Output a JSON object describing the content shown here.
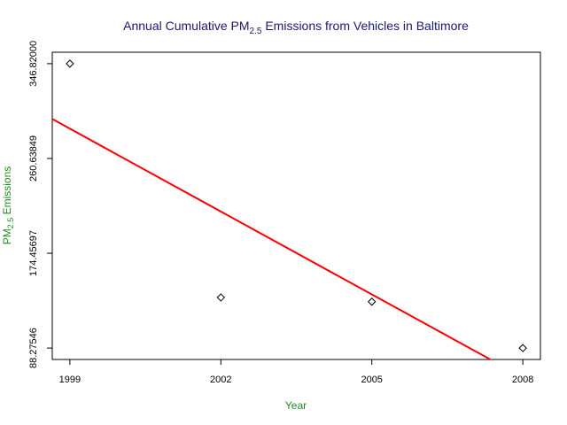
{
  "chart_data": {
    "type": "scatter",
    "title": {
      "prefix": "Annual Cumulative PM",
      "subscript": "2.5",
      "suffix": " Emissions from Vehicles in Baltimore"
    },
    "xlabel": "Year",
    "ylabel": {
      "prefix": "PM",
      "subscript": "2.5",
      "suffix": " Emissions"
    },
    "x": [
      1999,
      2002,
      2005,
      2008
    ],
    "y": [
      346.82,
      134.31,
      130.43,
      88.28
    ],
    "xlim": [
      1998.65,
      2008.35
    ],
    "ylim": [
      77.9,
      357.2
    ],
    "xticks": [
      1999,
      2002,
      2005,
      2008
    ],
    "xtick_labels": [
      "1999",
      "2002",
      "2005",
      "2008"
    ],
    "yticks": [
      88.27546,
      174.45697,
      260.63849,
      346.82
    ],
    "ytick_labels": [
      "88.27546",
      "174.45697",
      "260.63849",
      "346.82000"
    ],
    "marker": "diamond",
    "point_color": "#000000",
    "trend_line": {
      "color": "#FF0000",
      "slope": -25.11,
      "intercept": 50482.6
    },
    "title_color": "#191970",
    "axis_label_color": "#228B22"
  }
}
